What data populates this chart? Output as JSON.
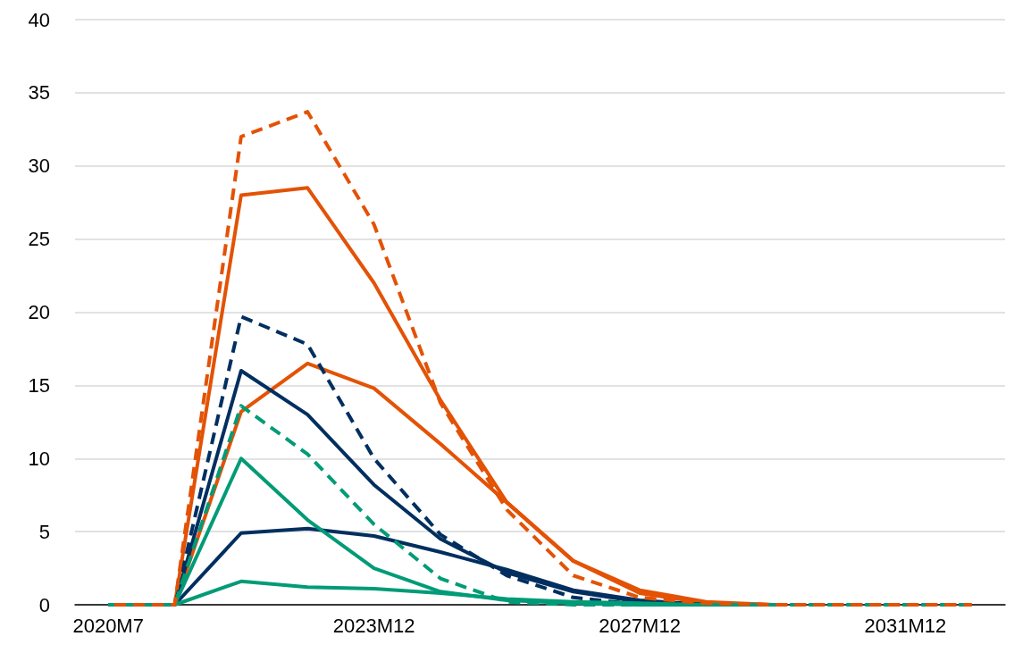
{
  "chart_data": {
    "type": "line",
    "categories": [
      "2020M7",
      null,
      null,
      null,
      "2023M12",
      null,
      null,
      null,
      "2027M12",
      null,
      null,
      null,
      "2031M12",
      null
    ],
    "ylim": [
      0,
      40
    ],
    "yticks": [
      0,
      5,
      10,
      15,
      20,
      25,
      30,
      35,
      40
    ],
    "grid": "y",
    "marker": "none",
    "series": [
      {
        "color": "#e35205",
        "line_style": "solid",
        "values": [
          0,
          0,
          28,
          28.5,
          22,
          14,
          7,
          3,
          1,
          0.2,
          0,
          null,
          null,
          null
        ]
      },
      {
        "color": "#e35205",
        "line_style": "solid",
        "values": [
          0,
          0,
          13.2,
          16.5,
          14.8,
          11,
          7,
          3,
          0.8,
          0.1,
          0,
          null,
          null,
          null
        ]
      },
      {
        "color": "#002f5f",
        "line_style": "dashed",
        "values": [
          0,
          0,
          19.7,
          17.8,
          10,
          4.8,
          2,
          0.5,
          0,
          0,
          0,
          null,
          null,
          null
        ]
      },
      {
        "color": "#002f5f",
        "line_style": "solid",
        "values": [
          0,
          0,
          16,
          13,
          8.2,
          4.5,
          2.2,
          0.9,
          0.2,
          0,
          0,
          null,
          null,
          null
        ]
      },
      {
        "color": "#002f5f",
        "line_style": "solid",
        "values": [
          0,
          0,
          4.9,
          5.2,
          4.7,
          3.6,
          2.4,
          1,
          0.3,
          0,
          0,
          null,
          null,
          null
        ]
      },
      {
        "color": "#009b77",
        "line_style": "solid",
        "values": [
          0,
          0,
          10,
          5.8,
          2.5,
          0.9,
          0.3,
          0.1,
          0,
          0,
          0,
          null,
          null,
          null
        ]
      },
      {
        "color": "#009b77",
        "line_style": "solid",
        "values": [
          0,
          0,
          1.6,
          1.2,
          1.1,
          0.8,
          0.4,
          0.2,
          0.1,
          0,
          0,
          null,
          null,
          null
        ]
      },
      {
        "color": "#009b77",
        "line_style": "dashed",
        "values": [
          0,
          0,
          13.6,
          10.3,
          5.5,
          1.8,
          0.2,
          0,
          0,
          0,
          0,
          0,
          0,
          0
        ]
      },
      {
        "color": "#e35205",
        "line_style": "dashed",
        "values": [
          0,
          0,
          32,
          33.7,
          26,
          13.8,
          6.5,
          2,
          0.5,
          0.1,
          0,
          0,
          0,
          0
        ]
      }
    ]
  }
}
